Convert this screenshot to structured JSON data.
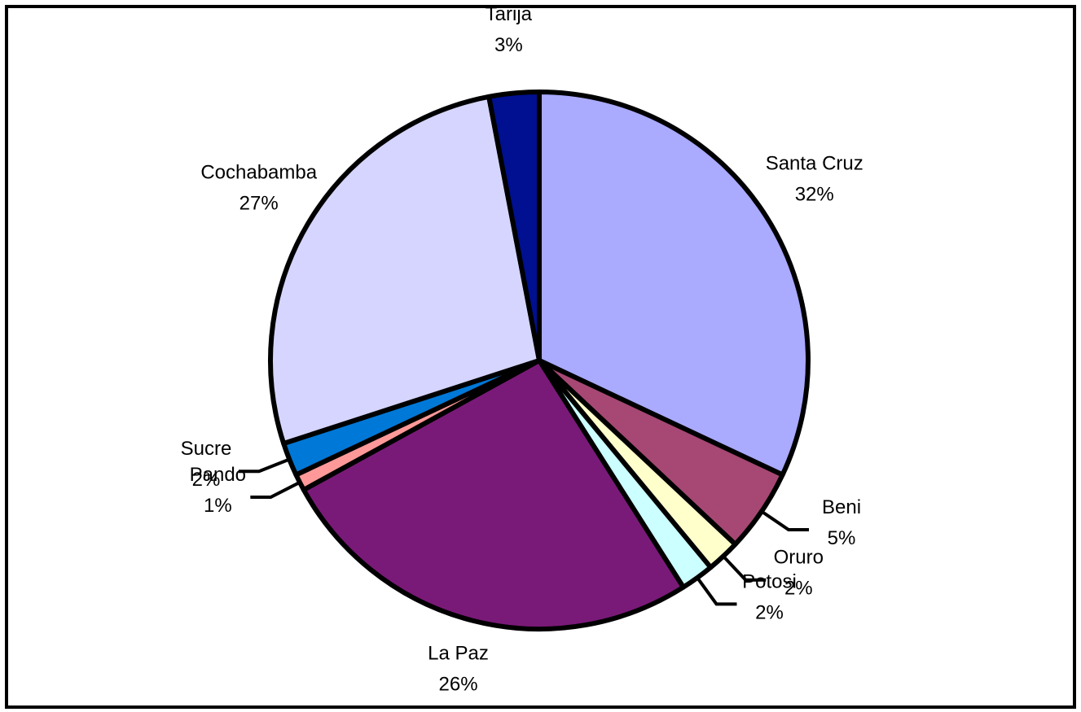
{
  "chart_data": {
    "type": "pie",
    "categories": [
      "Santa Cruz",
      "Beni",
      "Oruro",
      "Potosi",
      "La Paz",
      "Pando",
      "Sucre",
      "Cochabamba",
      "Tarija"
    ],
    "values": [
      32,
      5,
      2,
      2,
      26,
      1,
      2,
      27,
      3
    ],
    "value_labels": [
      "32%",
      "5%",
      "2%",
      "2%",
      "26%",
      "1%",
      "2%",
      "27%",
      "3%"
    ],
    "colors": [
      "#aaaaff",
      "#a64873",
      "#ffffcc",
      "#ccffff",
      "#7a1a78",
      "#ff9999",
      "#0078d7",
      "#d5d5ff",
      "#001090"
    ]
  }
}
